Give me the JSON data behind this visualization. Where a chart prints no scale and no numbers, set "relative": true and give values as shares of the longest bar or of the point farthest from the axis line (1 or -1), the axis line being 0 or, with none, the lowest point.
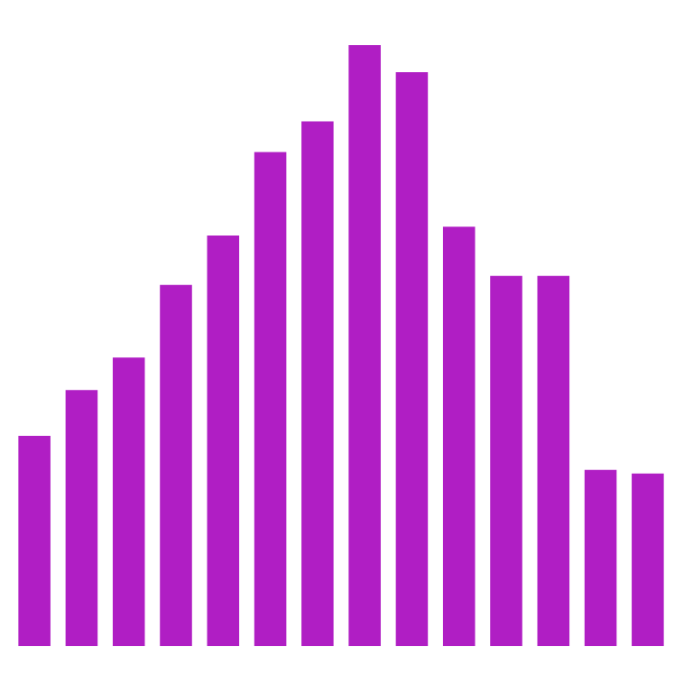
{
  "chart_data": {
    "type": "bar",
    "relative": true,
    "categories": [
      null,
      null,
      null,
      null,
      null,
      null,
      null,
      null,
      null,
      null,
      null,
      null,
      null,
      null
    ],
    "values": [
      0.35,
      0.426,
      0.48,
      0.601,
      0.683,
      0.822,
      0.873,
      1,
      0.955,
      0.698,
      0.616,
      0.616,
      0.293,
      0.287
    ],
    "color": "#b01ec4"
  }
}
